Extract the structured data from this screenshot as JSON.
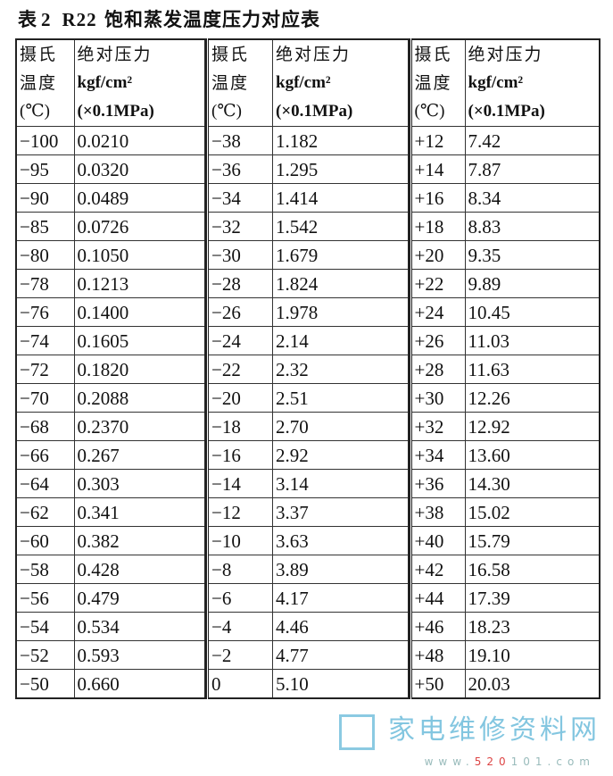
{
  "title": {
    "prefix": "表",
    "number": "2",
    "refrigerant": "R22",
    "text": "饱和蒸发温度压力对应表"
  },
  "header": {
    "temp_line1": "摄氏",
    "temp_line2": "温度",
    "temp_line3": "(℃)",
    "pres_line1": "绝对压力",
    "pres_line2": "kgf/cm²",
    "pres_line3": "(×0.1MPa)"
  },
  "blocks": [
    {
      "rows": [
        [
          "−100",
          "0.0210"
        ],
        [
          "−95",
          "0.0320"
        ],
        [
          "−90",
          "0.0489"
        ],
        [
          "−85",
          "0.0726"
        ],
        [
          "−80",
          "0.1050"
        ],
        [
          "−78",
          "0.1213"
        ],
        [
          "−76",
          "0.1400"
        ],
        [
          "−74",
          "0.1605"
        ],
        [
          "−72",
          "0.1820"
        ],
        [
          "−70",
          "0.2088"
        ],
        [
          "−68",
          "0.2370"
        ],
        [
          "−66",
          "0.267"
        ],
        [
          "−64",
          "0.303"
        ],
        [
          "−62",
          "0.341"
        ],
        [
          "−60",
          "0.382"
        ],
        [
          "−58",
          "0.428"
        ],
        [
          "−56",
          "0.479"
        ],
        [
          "−54",
          "0.534"
        ],
        [
          "−52",
          "0.593"
        ],
        [
          "−50",
          "0.660"
        ]
      ]
    },
    {
      "rows": [
        [
          "−38",
          "1.182"
        ],
        [
          "−36",
          "1.295"
        ],
        [
          "−34",
          "1.414"
        ],
        [
          "−32",
          "1.542"
        ],
        [
          "−30",
          "1.679"
        ],
        [
          "−28",
          "1.824"
        ],
        [
          "−26",
          "1.978"
        ],
        [
          "−24",
          "2.14"
        ],
        [
          "−22",
          "2.32"
        ],
        [
          "−20",
          "2.51"
        ],
        [
          "−18",
          "2.70"
        ],
        [
          "−16",
          "2.92"
        ],
        [
          "−14",
          "3.14"
        ],
        [
          "−12",
          "3.37"
        ],
        [
          "−10",
          "3.63"
        ],
        [
          "−8",
          "3.89"
        ],
        [
          "−6",
          "4.17"
        ],
        [
          "−4",
          "4.46"
        ],
        [
          "−2",
          "4.77"
        ],
        [
          "0",
          "5.10"
        ]
      ]
    },
    {
      "rows": [
        [
          "+12",
          "7.42"
        ],
        [
          "+14",
          "7.87"
        ],
        [
          "+16",
          "8.34"
        ],
        [
          "+18",
          "8.83"
        ],
        [
          "+20",
          "9.35"
        ],
        [
          "+22",
          "9.89"
        ],
        [
          "+24",
          "10.45"
        ],
        [
          "+26",
          "11.03"
        ],
        [
          "+28",
          "11.63"
        ],
        [
          "+30",
          "12.26"
        ],
        [
          "+32",
          "12.92"
        ],
        [
          "+34",
          "13.60"
        ],
        [
          "+36",
          "14.30"
        ],
        [
          "+38",
          "15.02"
        ],
        [
          "+40",
          "15.79"
        ],
        [
          "+42",
          "16.58"
        ],
        [
          "+44",
          "17.39"
        ],
        [
          "+46",
          "18.23"
        ],
        [
          "+48",
          "19.10"
        ],
        [
          "+50",
          "20.03"
        ]
      ]
    }
  ],
  "watermark": {
    "text": "家电维修资料网",
    "url_prefix": "www.",
    "url_red": "520",
    "url_suffix": "101.com"
  }
}
